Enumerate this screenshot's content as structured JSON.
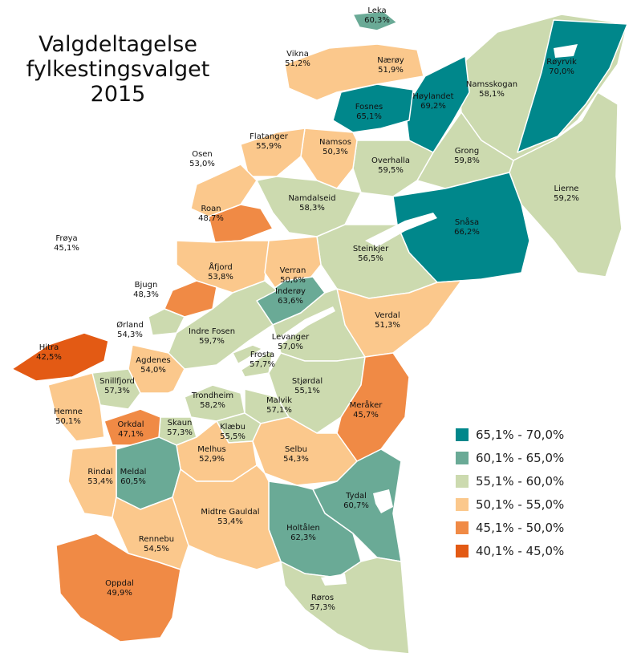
{
  "title": {
    "line1": "Valgdeltagelse",
    "line2": "fylkestingsvalget",
    "line3": "2015"
  },
  "colors": {
    "c65_70": "#00878b",
    "c60_65": "#6aaa96",
    "c55_60": "#ccdaaf",
    "c50_55": "#fbc88c",
    "c45_50": "#f08a45",
    "c40_45": "#e35a14",
    "water": "#ffffff",
    "border": "#ffffff"
  },
  "legend": [
    {
      "label": "65,1% - 70,0%",
      "color": "#00878b"
    },
    {
      "label": "60,1% - 65,0%",
      "color": "#6aaa96"
    },
    {
      "label": "55,1% - 60,0%",
      "color": "#ccdaaf"
    },
    {
      "label": "50,1% - 55,0%",
      "color": "#fbc88c"
    },
    {
      "label": "45,1% - 50,0%",
      "color": "#f08a45"
    },
    {
      "label": "40,1% - 45,0%",
      "color": "#e35a14"
    }
  ],
  "municipalities": [
    {
      "name": "Leka",
      "value": "60,3%"
    },
    {
      "name": "Vikna",
      "value": "51,2%"
    },
    {
      "name": "Nærøy",
      "value": "51,9%"
    },
    {
      "name": "Røyrvik",
      "value": "70,0%"
    },
    {
      "name": "Namsskogan",
      "value": "58,1%"
    },
    {
      "name": "Høylandet",
      "value": "69,2%"
    },
    {
      "name": "Fosnes",
      "value": "65,1%"
    },
    {
      "name": "Flatanger",
      "value": "55,9%"
    },
    {
      "name": "Namsos",
      "value": "50,3%"
    },
    {
      "name": "Osen",
      "value": "53,0%"
    },
    {
      "name": "Grong",
      "value": "59,8%"
    },
    {
      "name": "Overhalla",
      "value": "59,5%"
    },
    {
      "name": "Lierne",
      "value": "59,2%"
    },
    {
      "name": "Namdalseid",
      "value": "58,3%"
    },
    {
      "name": "Roan",
      "value": "48,7%"
    },
    {
      "name": "Snåsa",
      "value": "66,2%"
    },
    {
      "name": "Frøya",
      "value": "45,1%"
    },
    {
      "name": "Steinkjer",
      "value": "56,5%"
    },
    {
      "name": "Åfjord",
      "value": "53,8%"
    },
    {
      "name": "Verran",
      "value": "50,6%"
    },
    {
      "name": "Bjugn",
      "value": "48,3%"
    },
    {
      "name": "Inderøy",
      "value": "63,6%"
    },
    {
      "name": "Ørland",
      "value": "54,3%"
    },
    {
      "name": "Verdal",
      "value": "51,3%"
    },
    {
      "name": "Indre Fosen",
      "value": "59,7%"
    },
    {
      "name": "Levanger",
      "value": "57,0%"
    },
    {
      "name": "Hitra",
      "value": "42,5%"
    },
    {
      "name": "Agdenes",
      "value": "54,0%"
    },
    {
      "name": "Frosta",
      "value": "57,7%"
    },
    {
      "name": "Snillfjord",
      "value": "57,3%"
    },
    {
      "name": "Stjørdal",
      "value": "55,1%"
    },
    {
      "name": "Trondheim",
      "value": "58,2%"
    },
    {
      "name": "Malvik",
      "value": "57,1%"
    },
    {
      "name": "Meråker",
      "value": "45,7%"
    },
    {
      "name": "Hemne",
      "value": "50,1%"
    },
    {
      "name": "Orkdal",
      "value": "47,1%"
    },
    {
      "name": "Skaun",
      "value": "57,3%"
    },
    {
      "name": "Klæbu",
      "value": "55,5%"
    },
    {
      "name": "Selbu",
      "value": "54,3%"
    },
    {
      "name": "Melhus",
      "value": "52,9%"
    },
    {
      "name": "Meldal",
      "value": "60,5%"
    },
    {
      "name": "Rindal",
      "value": "53,4%"
    },
    {
      "name": "Tydal",
      "value": "60,7%"
    },
    {
      "name": "Midtre Gauldal",
      "value": "53,4%"
    },
    {
      "name": "Holtålen",
      "value": "62,3%"
    },
    {
      "name": "Rennebu",
      "value": "54,5%"
    },
    {
      "name": "Oppdal",
      "value": "49,9%"
    },
    {
      "name": "Røros",
      "value": "57,3%"
    }
  ]
}
